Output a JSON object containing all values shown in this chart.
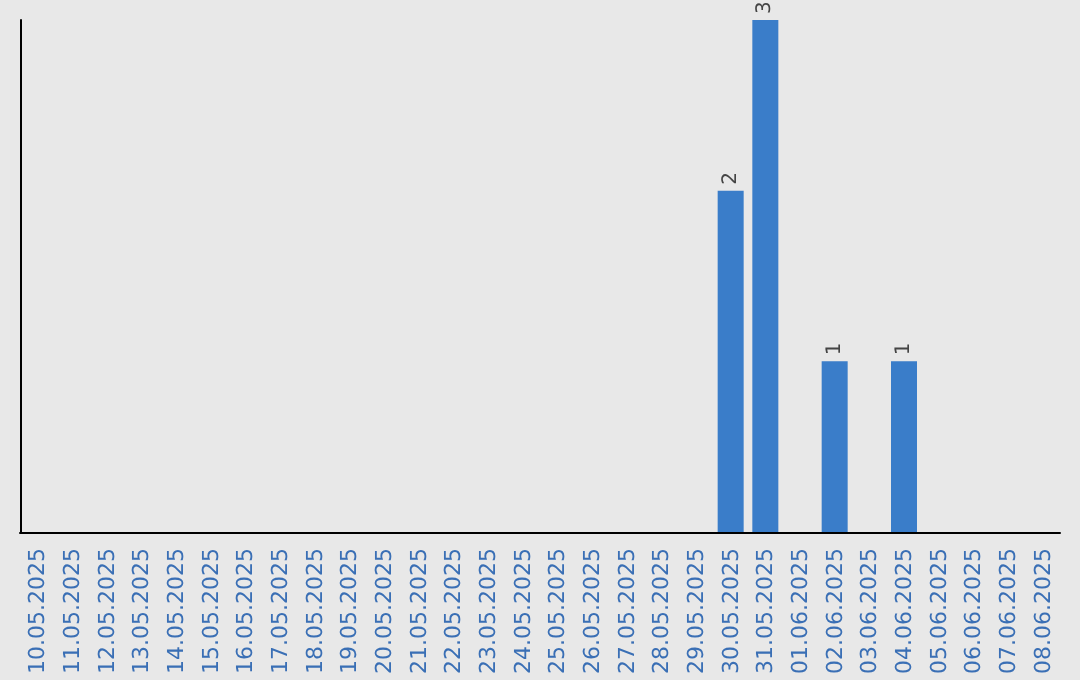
{
  "chart_data": {
    "type": "bar",
    "categories": [
      "10.05.2025",
      "11.05.2025",
      "12.05.2025",
      "13.05.2025",
      "14.05.2025",
      "15.05.2025",
      "16.05.2025",
      "17.05.2025",
      "18.05.2025",
      "19.05.2025",
      "20.05.2025",
      "21.05.2025",
      "22.05.2025",
      "23.05.2025",
      "24.05.2025",
      "25.05.2025",
      "26.05.2025",
      "27.05.2025",
      "28.05.2025",
      "29.05.2025",
      "30.05.2025",
      "31.05.2025",
      "01.06.2025",
      "02.06.2025",
      "03.06.2025",
      "04.06.2025",
      "05.06.2025",
      "06.06.2025",
      "07.06.2025",
      "08.06.2025"
    ],
    "values": [
      null,
      null,
      null,
      null,
      null,
      null,
      null,
      null,
      null,
      null,
      null,
      null,
      null,
      null,
      null,
      null,
      null,
      null,
      null,
      null,
      2,
      3,
      null,
      1,
      null,
      1,
      null,
      null,
      null,
      null
    ],
    "color": "#3a7dc9",
    "data_labels": true,
    "tick_labels": "x",
    "grid": false
  }
}
